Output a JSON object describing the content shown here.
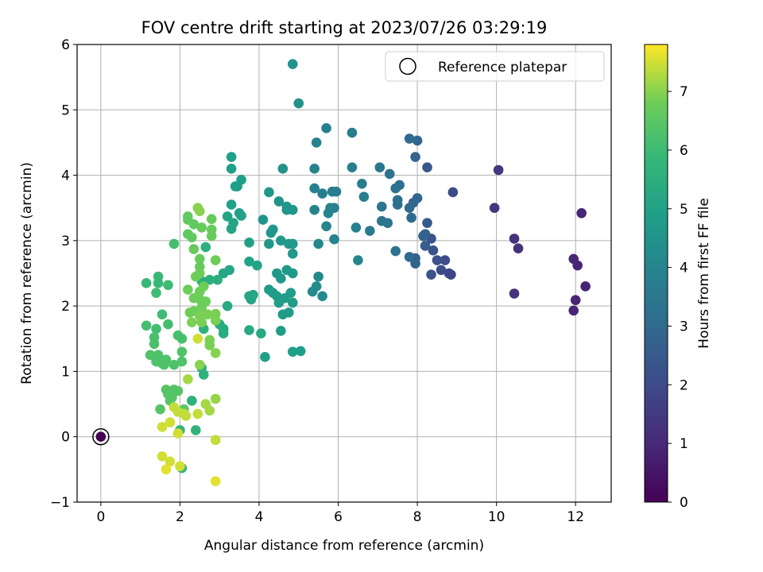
{
  "chart_data": {
    "type": "scatter",
    "title": "FOV centre drift starting at 2023/07/26 03:29:19",
    "xlabel": "Angular distance from reference (arcmin)",
    "ylabel": "Rotation from reference (arcmin)",
    "xlim": [
      -0.6,
      12.9
    ],
    "ylim": [
      -1,
      6
    ],
    "xticks": [
      0,
      2,
      4,
      6,
      8,
      10,
      12
    ],
    "yticks": [
      -1,
      0,
      1,
      2,
      3,
      4,
      5,
      6
    ],
    "grid": true,
    "colormap": "viridis",
    "colorbar": {
      "label": "Hours from first FF file",
      "range": [
        0,
        7.8
      ],
      "ticks": [
        0,
        1,
        2,
        3,
        4,
        5,
        6,
        7
      ]
    },
    "legend": {
      "position": "top-right",
      "entries": [
        "Reference platepar"
      ]
    },
    "reference_point": {
      "x": 0,
      "y": 0
    },
    "points": [
      {
        "x": 0.0,
        "y": 0.0,
        "h": 0.0
      },
      {
        "x": 10.05,
        "y": 4.08,
        "h": 1.4
      },
      {
        "x": 12.15,
        "y": 3.42,
        "h": 0.9
      },
      {
        "x": 9.95,
        "y": 3.5,
        "h": 1.4
      },
      {
        "x": 10.45,
        "y": 3.03,
        "h": 1.3
      },
      {
        "x": 10.55,
        "y": 2.88,
        "h": 1.3
      },
      {
        "x": 11.95,
        "y": 2.72,
        "h": 0.9
      },
      {
        "x": 12.05,
        "y": 2.62,
        "h": 0.9
      },
      {
        "x": 12.25,
        "y": 2.3,
        "h": 0.8
      },
      {
        "x": 10.45,
        "y": 2.19,
        "h": 1.3
      },
      {
        "x": 12.0,
        "y": 2.09,
        "h": 0.9
      },
      {
        "x": 11.95,
        "y": 1.93,
        "h": 0.9
      },
      {
        "x": 8.9,
        "y": 3.74,
        "h": 2.0
      },
      {
        "x": 8.8,
        "y": 2.5,
        "h": 1.9
      },
      {
        "x": 8.7,
        "y": 2.7,
        "h": 2.0
      },
      {
        "x": 8.85,
        "y": 2.48,
        "h": 1.9
      },
      {
        "x": 8.6,
        "y": 2.55,
        "h": 2.1
      },
      {
        "x": 8.5,
        "y": 2.7,
        "h": 2.2
      },
      {
        "x": 8.4,
        "y": 2.85,
        "h": 2.3
      },
      {
        "x": 8.35,
        "y": 3.03,
        "h": 2.3
      },
      {
        "x": 8.35,
        "y": 2.48,
        "h": 2.3
      },
      {
        "x": 8.25,
        "y": 3.27,
        "h": 2.5
      },
      {
        "x": 8.2,
        "y": 3.1,
        "h": 2.6
      },
      {
        "x": 8.2,
        "y": 2.92,
        "h": 2.6
      },
      {
        "x": 8.15,
        "y": 3.07,
        "h": 2.7
      },
      {
        "x": 8.25,
        "y": 4.12,
        "h": 2.4
      },
      {
        "x": 8.0,
        "y": 4.53,
        "h": 2.9
      },
      {
        "x": 7.8,
        "y": 4.56,
        "h": 3.0
      },
      {
        "x": 7.95,
        "y": 4.28,
        "h": 2.8
      },
      {
        "x": 8.0,
        "y": 3.65,
        "h": 2.9
      },
      {
        "x": 7.9,
        "y": 3.58,
        "h": 2.9
      },
      {
        "x": 7.8,
        "y": 3.5,
        "h": 3.0
      },
      {
        "x": 7.85,
        "y": 3.35,
        "h": 3.0
      },
      {
        "x": 7.95,
        "y": 2.73,
        "h": 2.8
      },
      {
        "x": 7.95,
        "y": 2.65,
        "h": 2.8
      },
      {
        "x": 7.8,
        "y": 2.75,
        "h": 3.0
      },
      {
        "x": 7.55,
        "y": 3.85,
        "h": 3.2
      },
      {
        "x": 7.45,
        "y": 3.8,
        "h": 3.3
      },
      {
        "x": 7.5,
        "y": 3.62,
        "h": 3.2
      },
      {
        "x": 7.5,
        "y": 3.55,
        "h": 3.2
      },
      {
        "x": 7.3,
        "y": 4.02,
        "h": 3.3
      },
      {
        "x": 7.05,
        "y": 4.12,
        "h": 3.5
      },
      {
        "x": 7.1,
        "y": 3.52,
        "h": 3.5
      },
      {
        "x": 7.1,
        "y": 3.3,
        "h": 3.5
      },
      {
        "x": 7.25,
        "y": 3.27,
        "h": 3.4
      },
      {
        "x": 7.45,
        "y": 2.84,
        "h": 3.3
      },
      {
        "x": 6.8,
        "y": 3.15,
        "h": 3.6
      },
      {
        "x": 6.6,
        "y": 3.87,
        "h": 3.7
      },
      {
        "x": 6.65,
        "y": 3.67,
        "h": 3.7
      },
      {
        "x": 6.35,
        "y": 4.65,
        "h": 3.8
      },
      {
        "x": 6.35,
        "y": 4.12,
        "h": 3.8
      },
      {
        "x": 6.45,
        "y": 3.2,
        "h": 3.9
      },
      {
        "x": 6.5,
        "y": 2.7,
        "h": 4.0
      },
      {
        "x": 5.7,
        "y": 4.72,
        "h": 3.9
      },
      {
        "x": 5.45,
        "y": 4.5,
        "h": 3.9
      },
      {
        "x": 5.4,
        "y": 4.1,
        "h": 4.0
      },
      {
        "x": 5.95,
        "y": 3.75,
        "h": 3.8
      },
      {
        "x": 5.85,
        "y": 3.75,
        "h": 3.8
      },
      {
        "x": 5.6,
        "y": 3.72,
        "h": 3.8
      },
      {
        "x": 5.9,
        "y": 3.5,
        "h": 3.9
      },
      {
        "x": 5.8,
        "y": 3.5,
        "h": 3.9
      },
      {
        "x": 5.75,
        "y": 3.42,
        "h": 3.9
      },
      {
        "x": 5.4,
        "y": 3.8,
        "h": 3.9
      },
      {
        "x": 5.4,
        "y": 3.47,
        "h": 4.0
      },
      {
        "x": 5.7,
        "y": 3.22,
        "h": 4.0
      },
      {
        "x": 5.9,
        "y": 3.02,
        "h": 4.0
      },
      {
        "x": 5.5,
        "y": 2.95,
        "h": 4.1
      },
      {
        "x": 5.5,
        "y": 2.45,
        "h": 4.2
      },
      {
        "x": 5.45,
        "y": 2.3,
        "h": 4.2
      },
      {
        "x": 5.35,
        "y": 2.22,
        "h": 4.2
      },
      {
        "x": 5.6,
        "y": 2.15,
        "h": 4.2
      },
      {
        "x": 4.85,
        "y": 5.7,
        "h": 4.5
      },
      {
        "x": 5.0,
        "y": 5.1,
        "h": 4.4
      },
      {
        "x": 4.6,
        "y": 4.1,
        "h": 4.5
      },
      {
        "x": 4.25,
        "y": 3.74,
        "h": 4.6
      },
      {
        "x": 4.5,
        "y": 3.6,
        "h": 4.5
      },
      {
        "x": 4.7,
        "y": 3.52,
        "h": 4.6
      },
      {
        "x": 4.7,
        "y": 3.47,
        "h": 4.6
      },
      {
        "x": 4.85,
        "y": 3.47,
        "h": 4.6
      },
      {
        "x": 4.1,
        "y": 3.32,
        "h": 4.6
      },
      {
        "x": 4.35,
        "y": 3.17,
        "h": 4.6
      },
      {
        "x": 4.3,
        "y": 3.12,
        "h": 4.6
      },
      {
        "x": 4.55,
        "y": 3.0,
        "h": 4.7
      },
      {
        "x": 4.75,
        "y": 2.95,
        "h": 4.7
      },
      {
        "x": 4.85,
        "y": 2.95,
        "h": 4.7
      },
      {
        "x": 4.85,
        "y": 2.8,
        "h": 4.7
      },
      {
        "x": 4.25,
        "y": 2.95,
        "h": 4.6
      },
      {
        "x": 4.45,
        "y": 2.5,
        "h": 4.7
      },
      {
        "x": 4.7,
        "y": 2.55,
        "h": 4.7
      },
      {
        "x": 4.85,
        "y": 2.5,
        "h": 4.7
      },
      {
        "x": 4.55,
        "y": 2.42,
        "h": 4.7
      },
      {
        "x": 4.25,
        "y": 2.25,
        "h": 4.8
      },
      {
        "x": 4.35,
        "y": 2.2,
        "h": 4.8
      },
      {
        "x": 4.45,
        "y": 2.15,
        "h": 4.8
      },
      {
        "x": 4.5,
        "y": 2.05,
        "h": 4.8
      },
      {
        "x": 4.65,
        "y": 2.12,
        "h": 4.8
      },
      {
        "x": 4.8,
        "y": 2.2,
        "h": 4.8
      },
      {
        "x": 4.85,
        "y": 2.05,
        "h": 4.8
      },
      {
        "x": 4.6,
        "y": 1.87,
        "h": 4.8
      },
      {
        "x": 4.75,
        "y": 1.9,
        "h": 4.8
      },
      {
        "x": 4.55,
        "y": 1.62,
        "h": 4.8
      },
      {
        "x": 4.85,
        "y": 1.3,
        "h": 4.9
      },
      {
        "x": 5.05,
        "y": 1.31,
        "h": 4.9
      },
      {
        "x": 4.15,
        "y": 1.22,
        "h": 4.9
      },
      {
        "x": 3.3,
        "y": 4.28,
        "h": 4.9
      },
      {
        "x": 3.3,
        "y": 4.1,
        "h": 4.9
      },
      {
        "x": 3.55,
        "y": 3.93,
        "h": 4.9
      },
      {
        "x": 3.45,
        "y": 3.83,
        "h": 4.9
      },
      {
        "x": 3.4,
        "y": 3.83,
        "h": 4.9
      },
      {
        "x": 3.3,
        "y": 3.55,
        "h": 5.0
      },
      {
        "x": 3.5,
        "y": 3.42,
        "h": 5.0
      },
      {
        "x": 3.55,
        "y": 3.38,
        "h": 5.0
      },
      {
        "x": 3.2,
        "y": 3.37,
        "h": 5.1
      },
      {
        "x": 3.35,
        "y": 3.27,
        "h": 5.1
      },
      {
        "x": 3.3,
        "y": 3.18,
        "h": 5.1
      },
      {
        "x": 3.75,
        "y": 2.97,
        "h": 5.0
      },
      {
        "x": 3.75,
        "y": 2.68,
        "h": 5.1
      },
      {
        "x": 3.95,
        "y": 2.62,
        "h": 5.1
      },
      {
        "x": 3.25,
        "y": 2.55,
        "h": 5.2
      },
      {
        "x": 3.1,
        "y": 2.5,
        "h": 5.2
      },
      {
        "x": 3.75,
        "y": 2.15,
        "h": 5.2
      },
      {
        "x": 3.85,
        "y": 2.17,
        "h": 5.2
      },
      {
        "x": 3.8,
        "y": 2.1,
        "h": 5.2
      },
      {
        "x": 3.2,
        "y": 2.0,
        "h": 5.3
      },
      {
        "x": 3.75,
        "y": 1.63,
        "h": 5.3
      },
      {
        "x": 4.05,
        "y": 1.58,
        "h": 5.3
      },
      {
        "x": 3.1,
        "y": 1.65,
        "h": 5.3
      },
      {
        "x": 3.0,
        "y": 1.72,
        "h": 5.4
      },
      {
        "x": 3.1,
        "y": 1.58,
        "h": 5.4
      },
      {
        "x": 2.65,
        "y": 2.9,
        "h": 5.5
      },
      {
        "x": 2.95,
        "y": 2.4,
        "h": 5.5
      },
      {
        "x": 2.55,
        "y": 2.38,
        "h": 5.5
      },
      {
        "x": 2.75,
        "y": 2.4,
        "h": 5.5
      },
      {
        "x": 2.6,
        "y": 1.65,
        "h": 5.6
      },
      {
        "x": 2.55,
        "y": 1.05,
        "h": 5.6
      },
      {
        "x": 2.6,
        "y": 0.95,
        "h": 5.6
      },
      {
        "x": 2.3,
        "y": 0.55,
        "h": 5.6
      },
      {
        "x": 2.4,
        "y": 0.1,
        "h": 5.7
      },
      {
        "x": 2.0,
        "y": 0.1,
        "h": 5.7
      },
      {
        "x": 2.05,
        "y": -0.48,
        "h": 5.8
      },
      {
        "x": 1.15,
        "y": 2.35,
        "h": 5.9
      },
      {
        "x": 1.45,
        "y": 2.45,
        "h": 5.9
      },
      {
        "x": 1.45,
        "y": 2.35,
        "h": 5.9
      },
      {
        "x": 1.7,
        "y": 2.32,
        "h": 6.0
      },
      {
        "x": 1.4,
        "y": 2.2,
        "h": 6.0
      },
      {
        "x": 1.55,
        "y": 1.87,
        "h": 6.0
      },
      {
        "x": 1.15,
        "y": 1.7,
        "h": 6.1
      },
      {
        "x": 1.7,
        "y": 1.72,
        "h": 6.1
      },
      {
        "x": 1.4,
        "y": 1.65,
        "h": 6.1
      },
      {
        "x": 1.35,
        "y": 1.52,
        "h": 6.2
      },
      {
        "x": 1.35,
        "y": 1.42,
        "h": 6.2
      },
      {
        "x": 1.95,
        "y": 1.55,
        "h": 6.2
      },
      {
        "x": 2.05,
        "y": 1.5,
        "h": 6.2
      },
      {
        "x": 2.05,
        "y": 1.3,
        "h": 6.3
      },
      {
        "x": 1.25,
        "y": 1.25,
        "h": 6.3
      },
      {
        "x": 1.45,
        "y": 1.25,
        "h": 6.3
      },
      {
        "x": 1.4,
        "y": 1.15,
        "h": 6.3
      },
      {
        "x": 1.55,
        "y": 1.12,
        "h": 6.3
      },
      {
        "x": 1.65,
        "y": 1.18,
        "h": 6.3
      },
      {
        "x": 1.6,
        "y": 1.1,
        "h": 6.3
      },
      {
        "x": 1.85,
        "y": 1.1,
        "h": 6.3
      },
      {
        "x": 2.05,
        "y": 1.15,
        "h": 6.3
      },
      {
        "x": 1.85,
        "y": 2.95,
        "h": 6.1
      },
      {
        "x": 1.65,
        "y": 0.72,
        "h": 6.4
      },
      {
        "x": 1.7,
        "y": 0.65,
        "h": 6.4
      },
      {
        "x": 1.85,
        "y": 0.72,
        "h": 6.4
      },
      {
        "x": 1.95,
        "y": 0.7,
        "h": 6.4
      },
      {
        "x": 1.8,
        "y": 0.6,
        "h": 6.4
      },
      {
        "x": 1.75,
        "y": 0.55,
        "h": 6.4
      },
      {
        "x": 1.5,
        "y": 0.42,
        "h": 6.4
      },
      {
        "x": 2.1,
        "y": 0.42,
        "h": 6.5
      },
      {
        "x": 2.2,
        "y": 3.37,
        "h": 6.6
      },
      {
        "x": 2.2,
        "y": 3.32,
        "h": 6.6
      },
      {
        "x": 2.35,
        "y": 3.25,
        "h": 6.6
      },
      {
        "x": 2.2,
        "y": 3.1,
        "h": 6.6
      },
      {
        "x": 2.3,
        "y": 3.05,
        "h": 6.6
      },
      {
        "x": 2.55,
        "y": 3.2,
        "h": 6.7
      },
      {
        "x": 2.8,
        "y": 3.33,
        "h": 6.7
      },
      {
        "x": 2.8,
        "y": 3.17,
        "h": 6.7
      },
      {
        "x": 2.8,
        "y": 3.07,
        "h": 6.7
      },
      {
        "x": 2.35,
        "y": 2.87,
        "h": 6.7
      },
      {
        "x": 2.5,
        "y": 2.72,
        "h": 6.7
      },
      {
        "x": 2.5,
        "y": 2.6,
        "h": 6.7
      },
      {
        "x": 2.9,
        "y": 2.7,
        "h": 6.8
      },
      {
        "x": 2.4,
        "y": 2.45,
        "h": 6.8
      },
      {
        "x": 2.5,
        "y": 2.5,
        "h": 6.8
      },
      {
        "x": 2.2,
        "y": 2.25,
        "h": 6.8
      },
      {
        "x": 2.5,
        "y": 2.22,
        "h": 6.8
      },
      {
        "x": 2.6,
        "y": 2.3,
        "h": 6.8
      },
      {
        "x": 2.35,
        "y": 2.12,
        "h": 6.8
      },
      {
        "x": 2.5,
        "y": 2.1,
        "h": 6.8
      },
      {
        "x": 2.65,
        "y": 2.07,
        "h": 6.8
      },
      {
        "x": 2.55,
        "y": 1.98,
        "h": 6.8
      },
      {
        "x": 2.25,
        "y": 1.9,
        "h": 6.8
      },
      {
        "x": 2.35,
        "y": 1.92,
        "h": 6.8
      },
      {
        "x": 2.5,
        "y": 1.85,
        "h": 6.9
      },
      {
        "x": 2.7,
        "y": 1.87,
        "h": 6.9
      },
      {
        "x": 2.9,
        "y": 1.88,
        "h": 6.9
      },
      {
        "x": 2.3,
        "y": 1.75,
        "h": 6.9
      },
      {
        "x": 2.55,
        "y": 1.75,
        "h": 6.9
      },
      {
        "x": 2.9,
        "y": 1.78,
        "h": 6.9
      },
      {
        "x": 2.75,
        "y": 1.48,
        "h": 6.9
      },
      {
        "x": 2.75,
        "y": 1.4,
        "h": 6.9
      },
      {
        "x": 2.9,
        "y": 1.28,
        "h": 7.0
      },
      {
        "x": 2.5,
        "y": 1.1,
        "h": 7.0
      },
      {
        "x": 2.45,
        "y": 3.5,
        "h": 7.0
      },
      {
        "x": 2.5,
        "y": 3.45,
        "h": 7.0
      },
      {
        "x": 2.2,
        "y": 0.88,
        "h": 7.2
      },
      {
        "x": 2.65,
        "y": 0.5,
        "h": 7.2
      },
      {
        "x": 2.9,
        "y": 0.58,
        "h": 7.1
      },
      {
        "x": 2.75,
        "y": 0.4,
        "h": 7.2
      },
      {
        "x": 2.45,
        "y": 1.5,
        "h": 7.5
      },
      {
        "x": 2.45,
        "y": 0.35,
        "h": 7.4
      },
      {
        "x": 1.85,
        "y": 0.45,
        "h": 7.4
      },
      {
        "x": 1.95,
        "y": 0.38,
        "h": 7.4
      },
      {
        "x": 2.1,
        "y": 0.35,
        "h": 7.4
      },
      {
        "x": 2.15,
        "y": 0.32,
        "h": 7.4
      },
      {
        "x": 1.75,
        "y": 0.22,
        "h": 7.5
      },
      {
        "x": 1.55,
        "y": 0.15,
        "h": 7.5
      },
      {
        "x": 1.95,
        "y": 0.05,
        "h": 7.5
      },
      {
        "x": 2.9,
        "y": -0.05,
        "h": 7.4
      },
      {
        "x": 1.55,
        "y": -0.3,
        "h": 7.5
      },
      {
        "x": 1.75,
        "y": -0.38,
        "h": 7.5
      },
      {
        "x": 2.0,
        "y": -0.45,
        "h": 7.5
      },
      {
        "x": 1.65,
        "y": -0.5,
        "h": 7.6
      },
      {
        "x": 2.9,
        "y": -0.68,
        "h": 7.6
      }
    ]
  }
}
